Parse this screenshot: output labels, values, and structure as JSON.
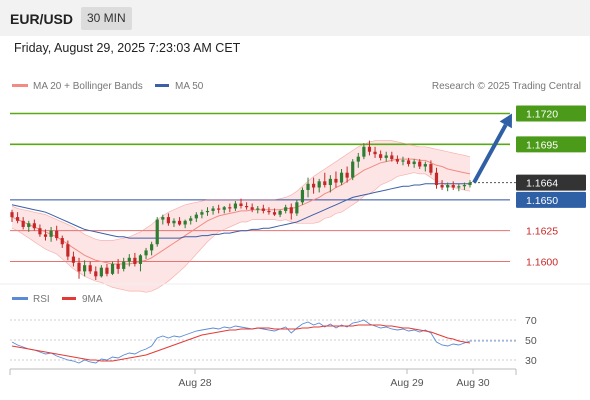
{
  "header": {
    "symbol": "EUR/USD",
    "interval": "30 MIN"
  },
  "datetime": "Friday, August 29, 2025 7:23:03 AM CET",
  "legend": {
    "bollinger": "MA 20 + Bollinger Bands",
    "ma50": "MA 50",
    "credit": "Research © 2025 Trading Central"
  },
  "rsi_legend": {
    "rsi": "RSI",
    "ma9": "9MA"
  },
  "colors": {
    "candle_up": "#2e7d32",
    "candle_down": "#c62828",
    "bollinger": "#f28b82",
    "band_fill": "#fde0e0",
    "ma50": "#3d5fa8",
    "resistance": "#5aa816",
    "pivot": "#2f4f9e",
    "support": "#e57373",
    "arrow": "#2f5fa5",
    "rsi": "#5b8bd6",
    "rsi_ma": "#e53935"
  },
  "chart_data": [
    {
      "type": "candlestick",
      "title": "EUR/USD",
      "timeframe": "30 MIN",
      "x_ticks": [
        "Aug 28",
        "Aug 29",
        "Aug 30"
      ],
      "ylim": [
        1.1585,
        1.1735
      ],
      "last_price": 1.1664,
      "levels": [
        {
          "value": 1.172,
          "label": "1.1720",
          "kind": "resistance"
        },
        {
          "value": 1.1695,
          "label": "1.1695",
          "kind": "resistance"
        },
        {
          "value": 1.165,
          "label": "1.1650",
          "kind": "pivot"
        },
        {
          "value": 1.1625,
          "label": "1.1625",
          "kind": "support"
        },
        {
          "value": 1.16,
          "label": "1.1600",
          "kind": "support"
        }
      ],
      "candles": [
        [
          1.164,
          1.1642,
          1.1632,
          1.1636
        ],
        [
          1.1636,
          1.164,
          1.1631,
          1.1633
        ],
        [
          1.1633,
          1.1636,
          1.1626,
          1.1628
        ],
        [
          1.1628,
          1.1633,
          1.1624,
          1.1631
        ],
        [
          1.1631,
          1.1634,
          1.1625,
          1.1627
        ],
        [
          1.1627,
          1.163,
          1.162,
          1.1622
        ],
        [
          1.1622,
          1.1626,
          1.1617,
          1.162
        ],
        [
          1.162,
          1.1628,
          1.1616,
          1.1625
        ],
        [
          1.1625,
          1.1629,
          1.1617,
          1.1619
        ],
        [
          1.1619,
          1.1621,
          1.1611,
          1.1614
        ],
        [
          1.1614,
          1.1617,
          1.1601,
          1.1604
        ],
        [
          1.1604,
          1.1608,
          1.1596,
          1.1599
        ],
        [
          1.1599,
          1.1603,
          1.1586,
          1.1592
        ],
        [
          1.1592,
          1.1601,
          1.1588,
          1.1597
        ],
        [
          1.1597,
          1.16,
          1.159,
          1.1592
        ],
        [
          1.1592,
          1.1596,
          1.1585,
          1.1588
        ],
        [
          1.1588,
          1.1597,
          1.1587,
          1.1595
        ],
        [
          1.1595,
          1.1598,
          1.1588,
          1.159
        ],
        [
          1.159,
          1.16,
          1.1589,
          1.1598
        ],
        [
          1.1598,
          1.1602,
          1.159,
          1.1594
        ],
        [
          1.1594,
          1.1603,
          1.1592,
          1.16
        ],
        [
          1.16,
          1.1606,
          1.1596,
          1.1603
        ],
        [
          1.1603,
          1.1607,
          1.1596,
          1.1598
        ],
        [
          1.1598,
          1.1606,
          1.1592,
          1.1605
        ],
        [
          1.1605,
          1.1611,
          1.1602,
          1.1609
        ],
        [
          1.1609,
          1.1616,
          1.1605,
          1.1614
        ],
        [
          1.1614,
          1.1636,
          1.1612,
          1.1634
        ],
        [
          1.1634,
          1.1638,
          1.163,
          1.1636
        ],
        [
          1.1636,
          1.1639,
          1.1629,
          1.1631
        ],
        [
          1.1631,
          1.1635,
          1.1628,
          1.1633
        ],
        [
          1.1633,
          1.1636,
          1.1629,
          1.163
        ],
        [
          1.163,
          1.1634,
          1.1627,
          1.1633
        ],
        [
          1.1633,
          1.1637,
          1.163,
          1.1635
        ],
        [
          1.1635,
          1.164,
          1.1632,
          1.1638
        ],
        [
          1.1638,
          1.1642,
          1.1635,
          1.164
        ],
        [
          1.164,
          1.1644,
          1.1637,
          1.1641
        ],
        [
          1.1641,
          1.1645,
          1.1638,
          1.1643
        ],
        [
          1.1643,
          1.1646,
          1.1639,
          1.1642
        ],
        [
          1.1642,
          1.1645,
          1.1639,
          1.1644
        ],
        [
          1.1644,
          1.1647,
          1.164,
          1.1643
        ],
        [
          1.1643,
          1.1649,
          1.1641,
          1.1647
        ],
        [
          1.1647,
          1.1651,
          1.1643,
          1.1645
        ],
        [
          1.1645,
          1.1648,
          1.1642,
          1.1644
        ],
        [
          1.1644,
          1.1647,
          1.164,
          1.1642
        ],
        [
          1.1642,
          1.1645,
          1.1639,
          1.1643
        ],
        [
          1.1643,
          1.1646,
          1.1639,
          1.1641
        ],
        [
          1.1641,
          1.1644,
          1.1638,
          1.164
        ],
        [
          1.164,
          1.1643,
          1.1637,
          1.1638
        ],
        [
          1.1638,
          1.1642,
          1.1636,
          1.1641
        ],
        [
          1.1641,
          1.1646,
          1.1639,
          1.1644
        ],
        [
          1.1644,
          1.1647,
          1.1634,
          1.1639
        ],
        [
          1.1639,
          1.165,
          1.1637,
          1.1648
        ],
        [
          1.1648,
          1.166,
          1.1646,
          1.1658
        ],
        [
          1.1658,
          1.1668,
          1.1652,
          1.1663
        ],
        [
          1.1663,
          1.1668,
          1.1655,
          1.166
        ],
        [
          1.166,
          1.1667,
          1.1656,
          1.1665
        ],
        [
          1.1665,
          1.1672,
          1.166,
          1.1662
        ],
        [
          1.1662,
          1.167,
          1.1656,
          1.1667
        ],
        [
          1.1667,
          1.1673,
          1.166,
          1.1664
        ],
        [
          1.1664,
          1.1675,
          1.1662,
          1.1672
        ],
        [
          1.1672,
          1.1677,
          1.1664,
          1.1668
        ],
        [
          1.1668,
          1.1683,
          1.1666,
          1.1681
        ],
        [
          1.1681,
          1.1688,
          1.1676,
          1.1685
        ],
        [
          1.1685,
          1.1696,
          1.1683,
          1.1693
        ],
        [
          1.1693,
          1.1698,
          1.1686,
          1.1689
        ],
        [
          1.1689,
          1.1693,
          1.1684,
          1.1687
        ],
        [
          1.1687,
          1.169,
          1.1682,
          1.1684
        ],
        [
          1.1684,
          1.1689,
          1.1681,
          1.1686
        ],
        [
          1.1686,
          1.1689,
          1.1681,
          1.1683
        ],
        [
          1.1683,
          1.1686,
          1.1679,
          1.1681
        ],
        [
          1.1681,
          1.1685,
          1.1678,
          1.1682
        ],
        [
          1.1682,
          1.1684,
          1.1677,
          1.1679
        ],
        [
          1.1679,
          1.1683,
          1.1676,
          1.1681
        ],
        [
          1.1681,
          1.1683,
          1.1675,
          1.1677
        ],
        [
          1.1677,
          1.1681,
          1.1673,
          1.1679
        ],
        [
          1.1679,
          1.1682,
          1.167,
          1.1672
        ],
        [
          1.1672,
          1.1676,
          1.1659,
          1.1662
        ],
        [
          1.1662,
          1.1666,
          1.1658,
          1.166
        ],
        [
          1.166,
          1.1664,
          1.1657,
          1.1662
        ],
        [
          1.1662,
          1.1665,
          1.1658,
          1.166
        ],
        [
          1.166,
          1.1663,
          1.1657,
          1.1661
        ],
        [
          1.1661,
          1.1664,
          1.1658,
          1.1662
        ],
        [
          1.1662,
          1.1666,
          1.166,
          1.1664
        ]
      ],
      "ma20": [
        1.1636,
        1.1634,
        1.1632,
        1.163,
        1.1628,
        1.1626,
        1.1624,
        1.1622,
        1.162,
        1.1617,
        1.1614,
        1.1611,
        1.1608,
        1.1605,
        1.1603,
        1.1601,
        1.16,
        1.1599,
        1.1598,
        1.1598,
        1.1598,
        1.1598,
        1.1599,
        1.16,
        1.1601,
        1.1603,
        1.1606,
        1.1609,
        1.1612,
        1.1615,
        1.1618,
        1.1621,
        1.1624,
        1.1627,
        1.163,
        1.1633,
        1.1635,
        1.1637,
        1.1638,
        1.1639,
        1.164,
        1.1641,
        1.1641,
        1.1642,
        1.1642,
        1.1642,
        1.1642,
        1.1642,
        1.1642,
        1.1643,
        1.1643,
        1.1644,
        1.1646,
        1.1648,
        1.165,
        1.1652,
        1.1655,
        1.1657,
        1.166,
        1.1662,
        1.1665,
        1.1668,
        1.1671,
        1.1674,
        1.1676,
        1.1678,
        1.168,
        1.1681,
        1.1682,
        1.1683,
        1.1683,
        1.1683,
        1.1683,
        1.1682,
        1.1682,
        1.168,
        1.1678,
        1.1677,
        1.1675,
        1.1674,
        1.1673,
        1.1672,
        1.1671
      ],
      "bb_upper": [
        1.1645,
        1.1643,
        1.1642,
        1.1641,
        1.164,
        1.1639,
        1.1638,
        1.1636,
        1.1634,
        1.1632,
        1.163,
        1.1628,
        1.1625,
        1.1622,
        1.162,
        1.1618,
        1.1617,
        1.1617,
        1.1617,
        1.1618,
        1.1619,
        1.162,
        1.1622,
        1.1624,
        1.1627,
        1.163,
        1.1634,
        1.1637,
        1.164,
        1.1642,
        1.1644,
        1.1646,
        1.1647,
        1.1648,
        1.1649,
        1.165,
        1.165,
        1.165,
        1.165,
        1.165,
        1.165,
        1.165,
        1.165,
        1.165,
        1.165,
        1.165,
        1.165,
        1.165,
        1.1651,
        1.1652,
        1.1654,
        1.1657,
        1.1661,
        1.1665,
        1.1669,
        1.1672,
        1.1675,
        1.1678,
        1.1681,
        1.1684,
        1.1687,
        1.169,
        1.1693,
        1.1695,
        1.1697,
        1.1698,
        1.1698,
        1.1698,
        1.1698,
        1.1697,
        1.1696,
        1.1695,
        1.1694,
        1.1693,
        1.1693,
        1.1692,
        1.1691,
        1.169,
        1.1689,
        1.1688,
        1.1687,
        1.1686,
        1.1685
      ],
      "bb_lower": [
        1.1627,
        1.1625,
        1.1622,
        1.1619,
        1.1616,
        1.1613,
        1.161,
        1.1608,
        1.1606,
        1.1602,
        1.1598,
        1.1594,
        1.1591,
        1.1588,
        1.1586,
        1.1584,
        1.1583,
        1.1581,
        1.1579,
        1.1578,
        1.1577,
        1.1576,
        1.1576,
        1.1576,
        1.1575,
        1.1576,
        1.1578,
        1.1581,
        1.1584,
        1.1588,
        1.1592,
        1.1596,
        1.1601,
        1.1606,
        1.1611,
        1.1616,
        1.162,
        1.1624,
        1.1626,
        1.1628,
        1.163,
        1.1632,
        1.1632,
        1.1634,
        1.1634,
        1.1634,
        1.1634,
        1.1634,
        1.1633,
        1.1634,
        1.1632,
        1.1631,
        1.1631,
        1.1631,
        1.1631,
        1.1632,
        1.1635,
        1.1636,
        1.1639,
        1.164,
        1.1643,
        1.1646,
        1.1649,
        1.1653,
        1.1655,
        1.1658,
        1.1662,
        1.1664,
        1.1666,
        1.1669,
        1.167,
        1.1671,
        1.1672,
        1.1671,
        1.1671,
        1.1668,
        1.1665,
        1.1664,
        1.1661,
        1.166,
        1.1659,
        1.1658,
        1.1657
      ],
      "ma50": [
        1.1646,
        1.1645,
        1.1644,
        1.1643,
        1.1642,
        1.1641,
        1.164,
        1.1638,
        1.1636,
        1.1634,
        1.1632,
        1.163,
        1.1628,
        1.1626,
        1.1625,
        1.1624,
        1.1623,
        1.1622,
        1.1621,
        1.162,
        1.162,
        1.1619,
        1.1619,
        1.1619,
        1.1619,
        1.1619,
        1.1619,
        1.1619,
        1.1619,
        1.1619,
        1.1619,
        1.162,
        1.162,
        1.162,
        1.1621,
        1.1621,
        1.1622,
        1.1622,
        1.1623,
        1.1623,
        1.1624,
        1.1625,
        1.1625,
        1.1626,
        1.1626,
        1.1627,
        1.1627,
        1.1628,
        1.1629,
        1.163,
        1.1631,
        1.1632,
        1.1634,
        1.1636,
        1.1638,
        1.164,
        1.1642,
        1.1644,
        1.1646,
        1.1648,
        1.165,
        1.1652,
        1.1653,
        1.1654,
        1.1655,
        1.1656,
        1.1657,
        1.1658,
        1.1659,
        1.166,
        1.1661,
        1.1661,
        1.1662,
        1.1662,
        1.1663,
        1.1663,
        1.1663,
        1.1663,
        1.1663,
        1.1663,
        1.1663,
        1.1663,
        1.1663
      ],
      "forecast": {
        "from": 1.1664,
        "to": 1.172
      }
    },
    {
      "type": "line",
      "title": "RSI",
      "ylim": [
        22,
        78
      ],
      "y_ticks": [
        70,
        50,
        30
      ],
      "series": [
        {
          "name": "RSI",
          "values": [
            48,
            45,
            43,
            41,
            40,
            38,
            36,
            37,
            34,
            32,
            30,
            29,
            27,
            30,
            28,
            27,
            31,
            30,
            33,
            32,
            35,
            37,
            36,
            39,
            41,
            44,
            52,
            54,
            52,
            54,
            53,
            55,
            57,
            59,
            60,
            61,
            62,
            61,
            63,
            62,
            64,
            63,
            62,
            61,
            62,
            61,
            60,
            59,
            61,
            63,
            57,
            62,
            66,
            68,
            65,
            67,
            63,
            66,
            62,
            65,
            63,
            67,
            68,
            70,
            66,
            64,
            62,
            63,
            61,
            60,
            61,
            59,
            60,
            58,
            60,
            57,
            48,
            45,
            44,
            46,
            45,
            47,
            49
          ]
        },
        {
          "name": "9MA",
          "values": [
            44,
            43,
            42,
            41,
            40,
            39,
            38,
            37,
            36,
            35,
            34,
            33,
            32,
            31,
            30,
            30,
            29,
            29,
            29,
            30,
            31,
            32,
            33,
            34,
            35,
            37,
            39,
            41,
            43,
            45,
            47,
            49,
            51,
            53,
            55,
            56,
            57,
            58,
            59,
            60,
            60,
            61,
            61,
            61,
            62,
            62,
            62,
            61,
            61,
            61,
            61,
            61,
            62,
            62,
            63,
            63,
            64,
            64,
            64,
            64,
            64,
            64,
            65,
            65,
            65,
            65,
            65,
            64,
            64,
            63,
            62,
            62,
            61,
            60,
            59,
            58,
            56,
            54,
            52,
            51,
            49,
            48,
            47
          ]
        }
      ]
    }
  ]
}
